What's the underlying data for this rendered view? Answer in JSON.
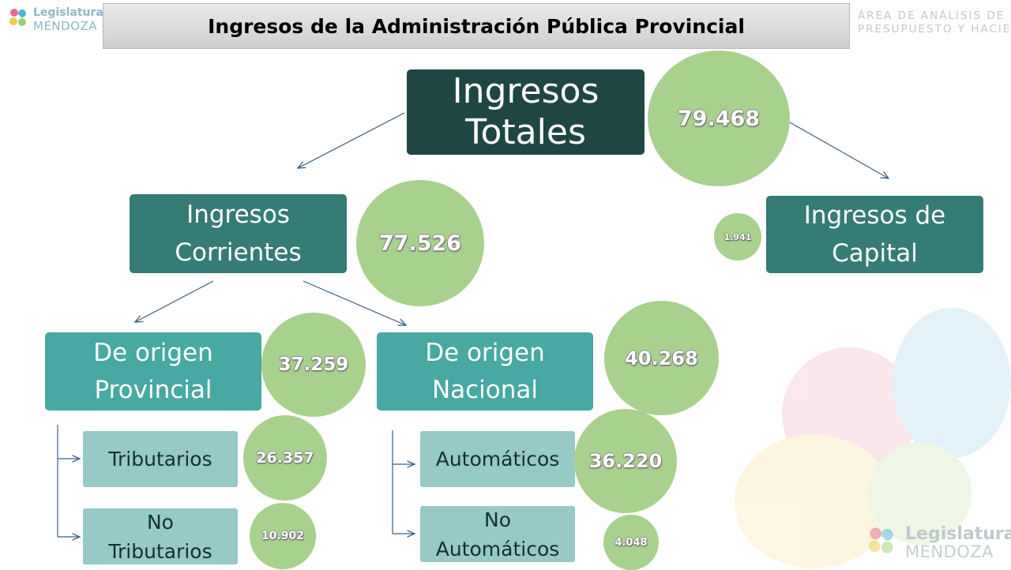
{
  "header": {
    "title": "Ingresos de la Administración Pública Provincial",
    "logo_line1": "Legislatura",
    "logo_line2": "MENDOZA",
    "area_line1": "ÁREA DE ANÁLISIS DE",
    "area_line2": "PRESUPUESTO Y HACIENDA"
  },
  "footer": {
    "logo_line1": "Legislatura",
    "logo_line2": "MENDOZA"
  },
  "nodes": {
    "totales": {
      "label": "Ingresos\nTotales",
      "value": "79.468"
    },
    "corrientes": {
      "label": "Ingresos\nCorrientes",
      "value": "77.526"
    },
    "capital": {
      "label": "Ingresos de\nCapital",
      "value": "1.941"
    },
    "provincial": {
      "label": "De origen\nProvincial",
      "value": "37.259"
    },
    "nacional": {
      "label": "De origen\nNacional",
      "value": "40.268"
    },
    "tributarios": {
      "label": "Tributarios",
      "value": "26.357"
    },
    "no_tributarios": {
      "label": "No\nTributarios",
      "value": "10.902"
    },
    "automaticos": {
      "label": "Automáticos",
      "value": "36.220"
    },
    "no_automaticos": {
      "label": "No\nAutomáticos",
      "value": "4.048"
    }
  },
  "colors": {
    "dark": "#1e4643",
    "mid": "#357b76",
    "teal": "#48a8a2",
    "pale": "#97c9c6",
    "circle": "#a9d18e",
    "arrow": "#3b5f8a"
  }
}
